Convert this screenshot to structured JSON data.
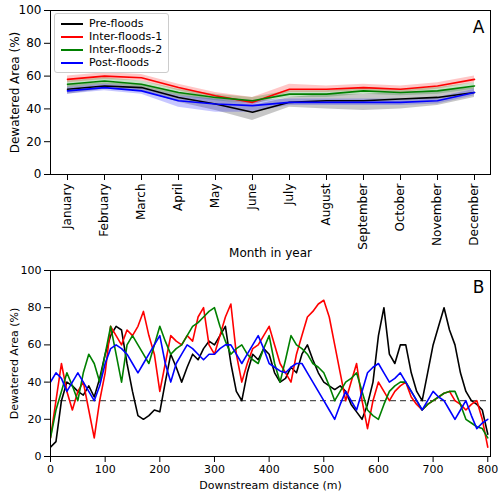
{
  "chart_data": [
    {
      "type": "line",
      "title": "A",
      "x_label": "Month in year",
      "y_label": "Dewatered Area (%)",
      "categories": [
        "January",
        "February",
        "March",
        "April",
        "May",
        "June",
        "July",
        "August",
        "September",
        "October",
        "November",
        "December"
      ],
      "ylim": [
        0,
        100
      ],
      "yticks": [
        0,
        20,
        40,
        60,
        80,
        100
      ],
      "legend": "upper left",
      "series": [
        {
          "name": "Pre-floods",
          "color": "#000000",
          "values": [
            52,
            54,
            53,
            47,
            43,
            38,
            44,
            45,
            45,
            46,
            47,
            50
          ],
          "lower": [
            49,
            52,
            51,
            44,
            39,
            33,
            41,
            40,
            39,
            40,
            42,
            47
          ],
          "upper": [
            55,
            56,
            55,
            50,
            46,
            42,
            47,
            49,
            49,
            50,
            51,
            53
          ]
        },
        {
          "name": "Inter-floods-1",
          "color": "#ff0000",
          "values": [
            58,
            60,
            59,
            53,
            48,
            44,
            52,
            52,
            53,
            52,
            54,
            58
          ],
          "lower": [
            56,
            58,
            57,
            51,
            46,
            42,
            50,
            50,
            51,
            50,
            52,
            56
          ],
          "upper": [
            60,
            62,
            61,
            55,
            50,
            47,
            55,
            54,
            55,
            54,
            56,
            60
          ]
        },
        {
          "name": "Inter-floods-2",
          "color": "#008000",
          "values": [
            55,
            57,
            55,
            50,
            47,
            45,
            49,
            49,
            51,
            50,
            51,
            54
          ],
          "lower": [
            53,
            55,
            53,
            48,
            45,
            43,
            47,
            47,
            49,
            48,
            49,
            52
          ],
          "upper": [
            57,
            59,
            57,
            52,
            49,
            47,
            51,
            51,
            53,
            52,
            53,
            56
          ]
        },
        {
          "name": "Post-floods",
          "color": "#0000ff",
          "values": [
            51,
            53,
            51,
            45,
            43,
            42,
            44,
            44,
            44,
            44,
            45,
            50
          ],
          "lower": [
            49,
            51,
            49,
            41,
            38,
            38,
            42,
            42,
            42,
            42,
            43,
            48
          ],
          "upper": [
            53,
            55,
            53,
            48,
            46,
            45,
            46,
            46,
            46,
            46,
            47,
            52
          ]
        }
      ]
    },
    {
      "type": "line",
      "title": "B",
      "x_label": "Downstream distance (m)",
      "y_label": "Dewatered Area (%)",
      "x": [
        0,
        10,
        20,
        30,
        40,
        50,
        60,
        70,
        80,
        90,
        100,
        110,
        120,
        130,
        140,
        150,
        160,
        170,
        180,
        190,
        200,
        210,
        220,
        230,
        240,
        250,
        260,
        270,
        280,
        290,
        300,
        310,
        320,
        330,
        340,
        350,
        360,
        370,
        380,
        390,
        400,
        410,
        420,
        430,
        440,
        450,
        460,
        470,
        480,
        490,
        500,
        510,
        520,
        530,
        540,
        550,
        560,
        570,
        580,
        590,
        600,
        610,
        620,
        630,
        640,
        650,
        660,
        670,
        680,
        690,
        700,
        710,
        720,
        730,
        740,
        750,
        760,
        770,
        780,
        790,
        800
      ],
      "xlim": [
        0,
        805
      ],
      "xticks": [
        0,
        100,
        200,
        300,
        400,
        500,
        600,
        700,
        800
      ],
      "ylim": [
        0,
        100
      ],
      "yticks": [
        0,
        20,
        40,
        60,
        80,
        100
      ],
      "reference_lines": [
        {
          "y": 30,
          "line_style": "dashed",
          "color": "#555555"
        }
      ],
      "series": [
        {
          "name": "Pre-floods",
          "color": "#000000",
          "values": [
            5,
            8,
            30,
            40,
            38,
            35,
            33,
            38,
            32,
            42,
            55,
            65,
            70,
            68,
            50,
            35,
            22,
            20,
            22,
            25,
            24,
            40,
            55,
            48,
            40,
            48,
            55,
            52,
            58,
            62,
            60,
            65,
            70,
            50,
            35,
            30,
            45,
            55,
            52,
            58,
            55,
            45,
            40,
            42,
            48,
            45,
            55,
            60,
            52,
            45,
            40,
            38,
            36,
            38,
            35,
            28,
            24,
            20,
            28,
            40,
            65,
            80,
            55,
            50,
            60,
            60,
            45,
            35,
            30,
            45,
            60,
            70,
            80,
            68,
            60,
            45,
            35,
            30,
            28,
            25,
            12
          ]
        },
        {
          "name": "Inter-floods-1",
          "color": "#ff0000",
          "values": [
            10,
            30,
            50,
            35,
            25,
            35,
            40,
            25,
            10,
            30,
            45,
            70,
            65,
            60,
            68,
            65,
            70,
            78,
            65,
            55,
            35,
            50,
            65,
            62,
            60,
            65,
            62,
            75,
            80,
            60,
            55,
            65,
            75,
            82,
            55,
            40,
            50,
            58,
            60,
            65,
            70,
            60,
            50,
            45,
            40,
            55,
            65,
            75,
            78,
            82,
            84,
            75,
            60,
            45,
            30,
            40,
            50,
            30,
            15,
            30,
            40,
            35,
            30,
            35,
            38,
            40,
            32,
            28,
            25,
            28,
            30,
            32,
            34,
            35,
            30,
            28,
            25,
            28,
            30,
            20,
            5
          ]
        },
        {
          "name": "Inter-floods-2",
          "color": "#008000",
          "values": [
            10,
            25,
            35,
            45,
            38,
            30,
            45,
            55,
            50,
            40,
            55,
            70,
            55,
            40,
            60,
            65,
            60,
            55,
            50,
            60,
            70,
            62,
            55,
            58,
            60,
            65,
            70,
            72,
            75,
            78,
            80,
            70,
            62,
            55,
            58,
            60,
            55,
            52,
            50,
            58,
            65,
            50,
            40,
            52,
            65,
            60,
            58,
            55,
            50,
            48,
            45,
            38,
            30,
            35,
            40,
            42,
            45,
            35,
            25,
            22,
            20,
            28,
            35,
            38,
            40,
            40,
            35,
            30,
            25,
            28,
            30,
            32,
            34,
            35,
            35,
            28,
            20,
            18,
            16,
            15,
            10
          ]
        },
        {
          "name": "Post-floods",
          "color": "#0000ff",
          "values": [
            40,
            45,
            42,
            35,
            40,
            45,
            40,
            35,
            30,
            38,
            50,
            58,
            60,
            58,
            55,
            50,
            45,
            50,
            55,
            60,
            65,
            50,
            40,
            50,
            55,
            60,
            58,
            55,
            52,
            55,
            55,
            58,
            60,
            60,
            55,
            50,
            55,
            60,
            65,
            58,
            50,
            48,
            46,
            45,
            48,
            50,
            50,
            45,
            40,
            35,
            30,
            25,
            20,
            28,
            35,
            30,
            25,
            35,
            45,
            48,
            50,
            45,
            40,
            42,
            45,
            40,
            35,
            30,
            25,
            30,
            35,
            32,
            30,
            25,
            20,
            25,
            30,
            22,
            15,
            18,
            20
          ]
        }
      ]
    }
  ]
}
